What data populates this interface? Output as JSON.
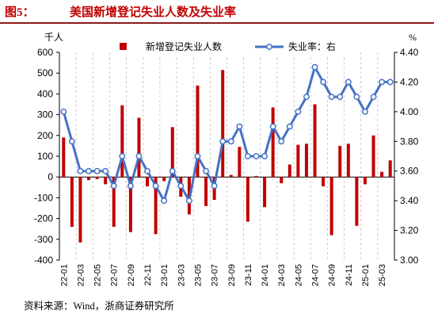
{
  "title": {
    "figure_label": "图5：",
    "text": "美国新增登记失业人数及失业率"
  },
  "source": "资料来源：Wind，浙商证券研究所",
  "colors": {
    "title": "#c00000",
    "rule": "#8b1a1a",
    "bar": "#c00000",
    "line": "#4472c4",
    "marker_fill": "#ffffff",
    "grid": "#bfbfbf",
    "axis": "#000000"
  },
  "chart_data": {
    "type": "bar",
    "categories": [
      "22-01",
      "",
      "22-03",
      "",
      "22-05",
      "",
      "22-07",
      "",
      "22-09",
      "",
      "22-11",
      "",
      "23-01",
      "",
      "23-03",
      "",
      "23-05",
      "",
      "23-07",
      "",
      "23-09",
      "",
      "23-11",
      "",
      "24-01",
      "",
      "24-03",
      "",
      "24-05",
      "",
      "24-07",
      "",
      "24-09",
      "",
      "24-11",
      "",
      "25-01",
      "",
      "25-03",
      ""
    ],
    "series": [
      {
        "name": "新增登记失业人数",
        "type": "bar",
        "axis": "left",
        "values": [
          190,
          -240,
          -315,
          -15,
          -10,
          -35,
          -240,
          345,
          -265,
          285,
          -45,
          -275,
          -20,
          240,
          -95,
          -180,
          440,
          -140,
          -110,
          515,
          10,
          145,
          -215,
          5,
          -145,
          335,
          -30,
          60,
          155,
          160,
          350,
          -45,
          -280,
          150,
          160,
          -235,
          -35,
          200,
          25,
          80
        ]
      },
      {
        "name": "失业率：右",
        "type": "line",
        "axis": "right",
        "marker": "circle",
        "values": [
          4.0,
          3.8,
          3.6,
          3.6,
          3.6,
          3.6,
          3.5,
          3.7,
          3.5,
          3.7,
          3.6,
          3.5,
          3.4,
          3.6,
          3.5,
          3.4,
          3.7,
          3.6,
          3.5,
          3.8,
          3.8,
          3.9,
          3.7,
          3.7,
          3.7,
          3.9,
          3.8,
          3.9,
          4.0,
          4.1,
          4.3,
          4.2,
          4.1,
          4.1,
          4.2,
          4.1,
          4.0,
          4.1,
          4.2,
          4.2
        ]
      }
    ],
    "ylabel": "千人",
    "y2label": "%",
    "ylim": [
      -400,
      600
    ],
    "y2lim": [
      3.0,
      4.4
    ],
    "yticks": [
      "600",
      "500",
      "400",
      "300",
      "200",
      "100",
      "0",
      "-100",
      "-200",
      "-300",
      "-400"
    ],
    "y2ticks": [
      "4.40",
      "4.20",
      "4.00",
      "3.80",
      "3.60",
      "3.40",
      "3.20",
      "3.00"
    ],
    "grid": "vertical dashed",
    "legend": "top-center"
  }
}
